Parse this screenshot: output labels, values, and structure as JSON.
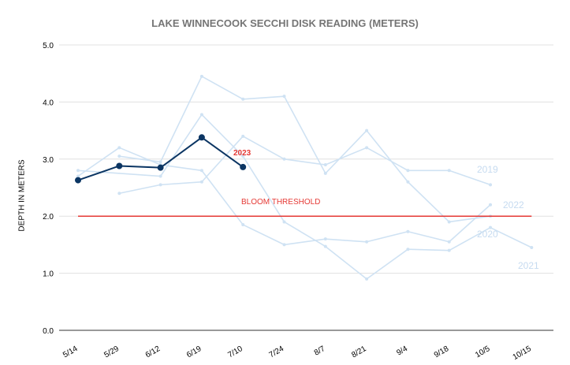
{
  "chart_data": {
    "type": "line",
    "title": "LAKE WINNECOOK SECCHI DISK READING (METERS)",
    "ylabel": "DEPTH IN METERS",
    "xlabel": "",
    "categories": [
      "5/14",
      "5/29",
      "6/12",
      "6/19",
      "7/10",
      "7/24",
      "8/7",
      "8/21",
      "9/4",
      "9/18",
      "10/5",
      "10/15"
    ],
    "yticks": [
      "0.0",
      "1.0",
      "2.0",
      "3.0",
      "4.0",
      "5.0"
    ],
    "ylim": [
      0,
      5
    ],
    "grid": true,
    "legend": "none",
    "series": [
      {
        "name": "2019",
        "color": "#cfe2f3",
        "values": [
          2.7,
          3.2,
          2.9,
          2.8,
          1.85,
          1.5,
          1.6,
          1.55,
          1.73,
          1.55,
          2.2,
          null
        ]
      },
      {
        "name": "2022",
        "color": "#cfe2f3",
        "values": [
          null,
          2.4,
          2.55,
          2.6,
          3.4,
          3.0,
          2.9,
          3.2,
          2.8,
          2.8,
          2.55,
          null
        ]
      },
      {
        "name": "2020",
        "color": "#cfe2f3",
        "values": [
          null,
          3.05,
          2.95,
          4.45,
          4.05,
          4.1,
          2.75,
          3.5,
          2.6,
          1.9,
          2.0,
          null
        ]
      },
      {
        "name": "2021",
        "color": "#cfe2f3",
        "values": [
          2.8,
          null,
          2.7,
          3.78,
          3.05,
          1.9,
          1.47,
          0.9,
          1.42,
          1.4,
          1.8,
          1.45
        ]
      },
      {
        "name": "2023",
        "color": "#0b3563",
        "values": [
          2.63,
          2.88,
          2.85,
          3.38,
          2.86,
          null,
          null,
          null,
          null,
          null,
          null,
          null
        ]
      },
      {
        "name": "BLOOM THRESHOLD",
        "color": "#e53935",
        "values": [
          2.0,
          2.0,
          2.0,
          2.0,
          2.0,
          2.0,
          2.0,
          2.0,
          2.0,
          2.0,
          2.0,
          2.0
        ]
      }
    ],
    "annotations": [
      {
        "text": "2023",
        "color": "#e53935"
      },
      {
        "text": "BLOOM THRESHOLD",
        "color": "#e53935"
      },
      {
        "text": "2019",
        "color": "#c6dbf0"
      },
      {
        "text": "2022",
        "color": "#c6dbf0"
      },
      {
        "text": "2020",
        "color": "#c6dbf0"
      },
      {
        "text": "2021",
        "color": "#c6dbf0"
      }
    ],
    "colors": {
      "grid": "#e0e0e0",
      "axis": "#333333",
      "faded_series": "#cfe2f3",
      "highlight_series": "#0b3563",
      "threshold": "#e53935"
    }
  }
}
